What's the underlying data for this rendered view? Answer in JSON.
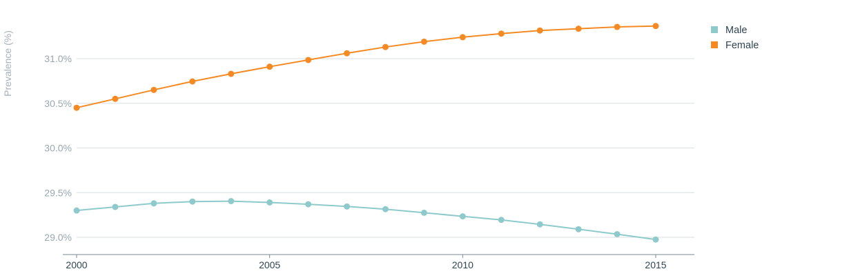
{
  "chart_data": {
    "type": "line",
    "title": "",
    "xlabel": "",
    "ylabel": "Prevalence (%)",
    "x": [
      2000,
      2001,
      2002,
      2003,
      2004,
      2005,
      2006,
      2007,
      2008,
      2009,
      2010,
      2011,
      2012,
      2013,
      2014,
      2015
    ],
    "series": [
      {
        "name": "Male",
        "color": "#8ecacb",
        "values": [
          29.3,
          29.34,
          29.38,
          29.4,
          29.405,
          29.39,
          29.37,
          29.345,
          29.315,
          29.275,
          29.235,
          29.195,
          29.145,
          29.09,
          29.035,
          28.975
        ]
      },
      {
        "name": "Female",
        "color": "#f58a23",
        "values": [
          30.45,
          30.55,
          30.65,
          30.745,
          30.83,
          30.91,
          30.985,
          31.06,
          31.13,
          31.19,
          31.24,
          31.28,
          31.315,
          31.335,
          31.355,
          31.365
        ]
      }
    ],
    "xlim": [
      2000,
      2016
    ],
    "ylim": [
      28.8,
      31.45
    ],
    "x_ticks": [
      2000,
      2005,
      2010,
      2015
    ],
    "x_tick_labels": [
      "2000",
      "2005",
      "2010",
      "2015"
    ],
    "y_ticks": [
      29.0,
      29.5,
      30.0,
      30.5,
      31.0
    ],
    "y_tick_labels": [
      "29.0%",
      "29.5%",
      "30.0%",
      "30.5%",
      "31.0%"
    ],
    "grid": true,
    "legend_position": "top-right",
    "colors": {
      "grid": "#d9dfe3",
      "axis": "#7a8a93",
      "y_tick_text": "#9aa7b0",
      "x_tick_text": "#2f4452",
      "ylabel_text": "#a6b2ba",
      "legend_text": "#2f4452"
    }
  }
}
